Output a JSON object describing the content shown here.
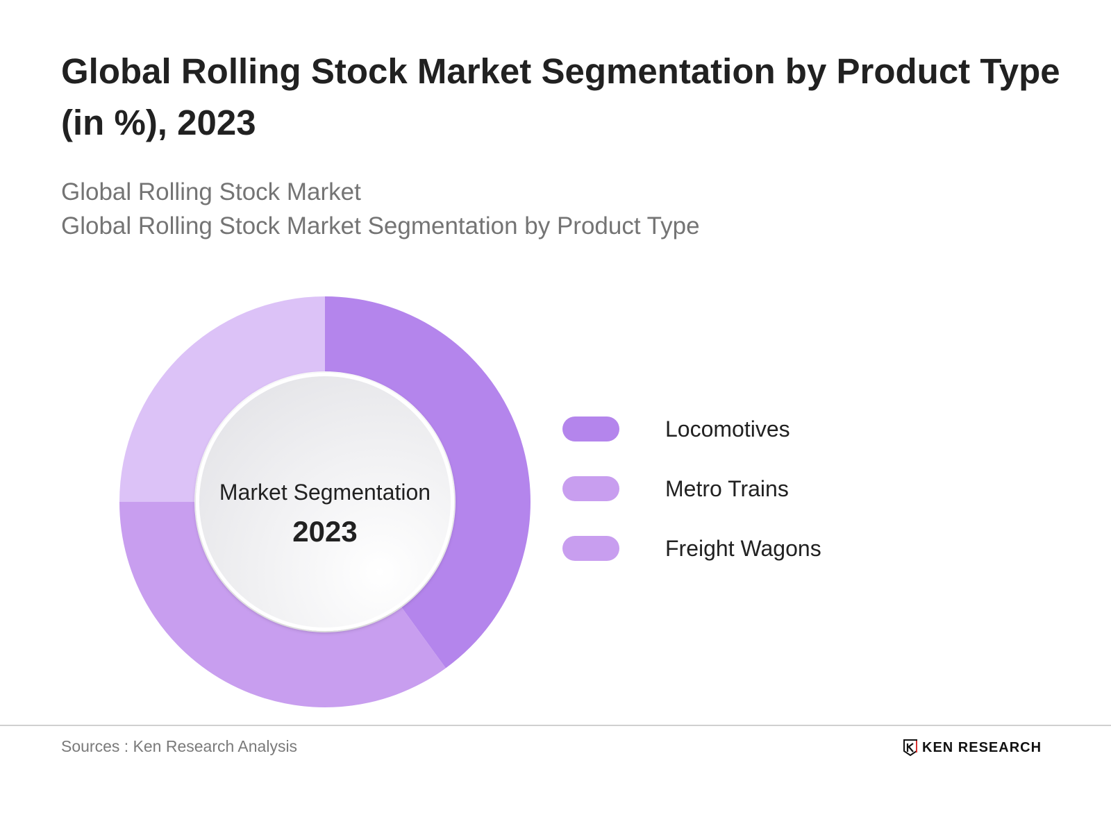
{
  "header": {
    "title": "Global Rolling Stock Market Segmentation by Product Type (in %), 2023",
    "subtitle_line1": "Global Rolling Stock Market",
    "subtitle_line2": "Global Rolling Stock Market Segmentation by Product Type"
  },
  "center": {
    "label": "Market Segmentation",
    "year": "2023"
  },
  "chart_data": {
    "type": "pie",
    "style": "donut",
    "categories": [
      "Locomotives",
      "Metro Trains",
      "Freight Wagons"
    ],
    "values": [
      40,
      35,
      25
    ],
    "colors": [
      "#b485ec",
      "#c89eef",
      "#dcc2f7"
    ],
    "legend_placement": "right"
  },
  "footer": {
    "source": "Sources : Ken Research Analysis",
    "logo_text": "KEN RESEARCH"
  }
}
